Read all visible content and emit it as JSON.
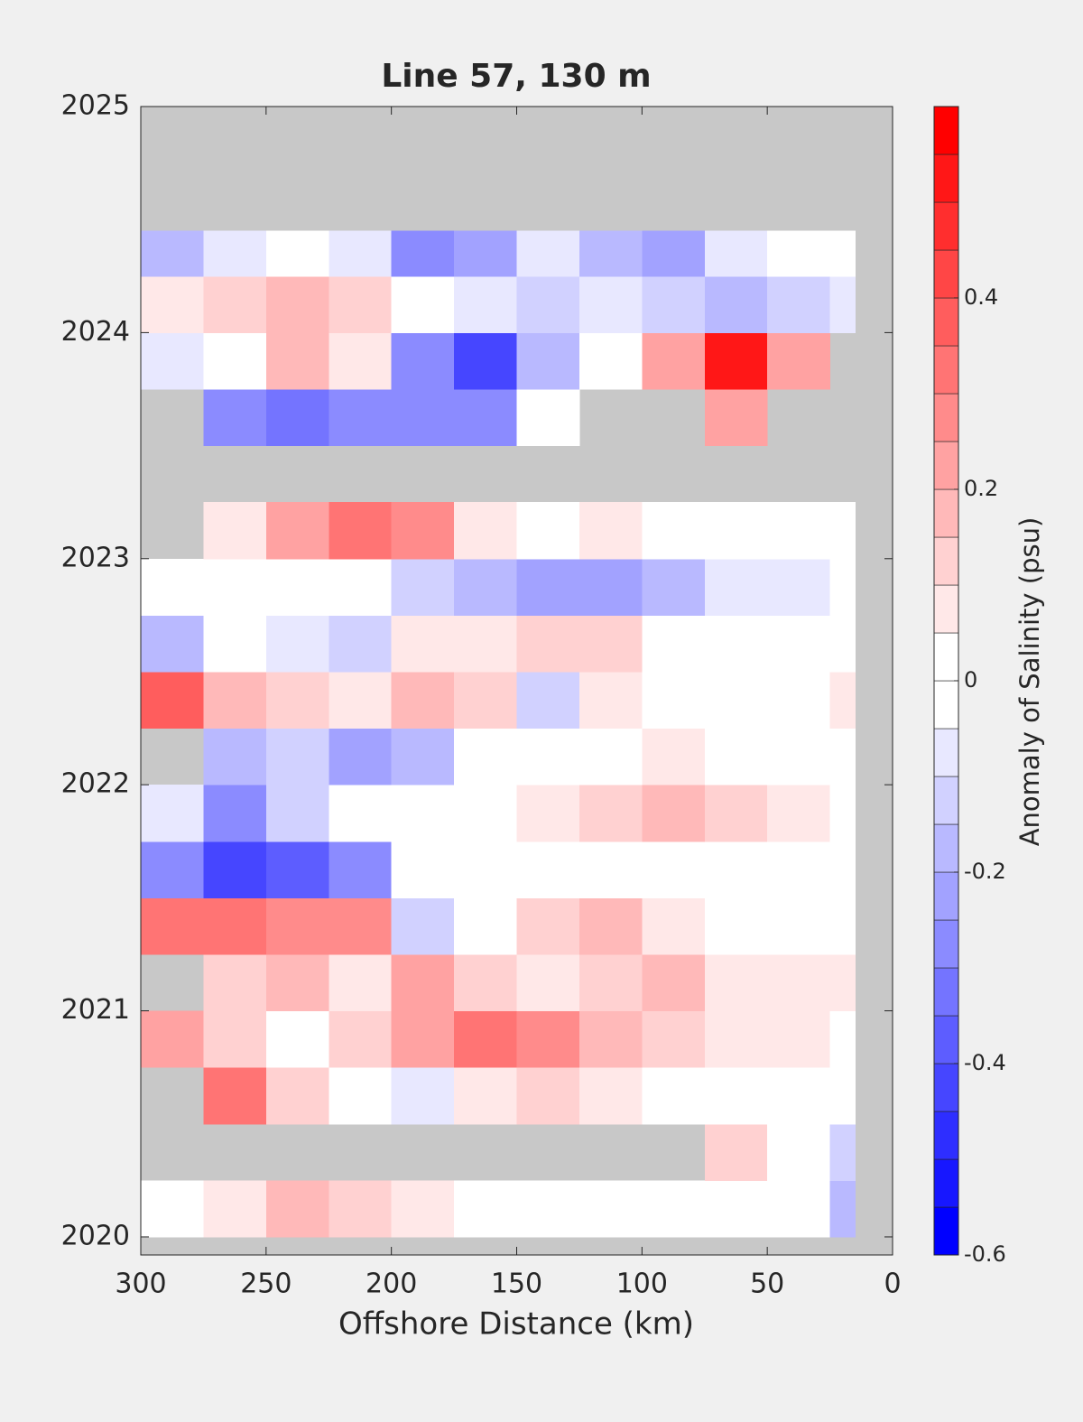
{
  "chart_data": {
    "type": "heatmap",
    "title": "Line 57, 130 m",
    "xlabel": "Offshore Distance (km)",
    "colorbar_label": "Anomaly of Salinity (psu)",
    "xlim": [
      300,
      0
    ],
    "xticks": [
      300,
      250,
      200,
      150,
      100,
      50,
      0
    ],
    "ylim": [
      2019.92,
      2025
    ],
    "yticks": [
      2020,
      2021,
      2022,
      2023,
      2024,
      2025
    ],
    "clim": [
      -0.6,
      0.6
    ],
    "cticks": [
      -0.6,
      -0.4,
      -0.2,
      0,
      0.2,
      0.4
    ],
    "levels_step": 0.05,
    "colormap": [
      "#0000ff",
      "#ffffff",
      "#ff0000"
    ],
    "nan_color": "#c8c8c8",
    "x_edges": [
      300,
      275,
      250,
      225,
      200,
      175,
      150,
      125,
      100,
      75,
      50,
      25,
      15
    ],
    "y_edges": [
      2020,
      2020.25,
      2020.5,
      2020.75,
      2021,
      2021.25,
      2021.5,
      2021.75,
      2022,
      2022.25,
      2022.5,
      2022.75,
      2023,
      2023.25,
      2023.5,
      2023.75,
      2024,
      2024.25,
      2024.45
    ],
    "z": [
      [
        0,
        0.05,
        0.15,
        0.1,
        0.05,
        0,
        -0.05,
        -0.05,
        0,
        0,
        0,
        -0.2
      ],
      [
        null,
        null,
        null,
        null,
        null,
        null,
        null,
        null,
        null,
        0.1,
        0,
        -0.15
      ],
      [
        null,
        0.3,
        0.1,
        -0.05,
        -0.1,
        0.05,
        0.1,
        0.05,
        0,
        0,
        0,
        0
      ],
      [
        0.2,
        0.1,
        0,
        0.1,
        0.2,
        0.3,
        0.25,
        0.15,
        0.1,
        0.05,
        0.05,
        0
      ],
      [
        null,
        0.1,
        0.15,
        0.05,
        0.2,
        0.1,
        0.05,
        0.1,
        0.15,
        0.05,
        0.05,
        0.05
      ],
      [
        0.3,
        0.3,
        0.25,
        0.25,
        -0.15,
        -0.05,
        0.1,
        0.15,
        0.05,
        0,
        0,
        0
      ],
      [
        -0.3,
        -0.45,
        -0.4,
        -0.3,
        -0.05,
        0,
        0,
        0,
        0,
        -0.05,
        0,
        0
      ],
      [
        -0.1,
        -0.3,
        -0.15,
        0,
        -0.05,
        0,
        0.05,
        0.1,
        0.15,
        0.1,
        0.05,
        0
      ],
      [
        null,
        -0.2,
        -0.15,
        -0.25,
        -0.2,
        0,
        0,
        0,
        0.05,
        0,
        0,
        0
      ],
      [
        0.35,
        0.15,
        0.1,
        0.05,
        0.15,
        0.1,
        -0.15,
        0.05,
        0,
        0,
        -0.05,
        0.05
      ],
      [
        -0.2,
        0,
        -0.1,
        -0.15,
        0.05,
        0.05,
        0.1,
        0.1,
        0,
        0,
        0,
        0
      ],
      [
        -0.05,
        -0.05,
        0,
        -0.05,
        -0.15,
        -0.2,
        -0.25,
        -0.25,
        -0.2,
        -0.1,
        -0.1,
        -0.05
      ],
      [
        null,
        0.05,
        0.2,
        0.3,
        0.25,
        0.05,
        0,
        0.05,
        0,
        0,
        0,
        0
      ],
      [
        null,
        null,
        null,
        null,
        null,
        null,
        null,
        null,
        null,
        null,
        null,
        null
      ],
      [
        null,
        -0.3,
        -0.35,
        -0.3,
        -0.3,
        -0.3,
        -0.05,
        null,
        null,
        0.2,
        null,
        null
      ],
      [
        -0.1,
        0,
        0.15,
        0.05,
        -0.3,
        -0.45,
        -0.2,
        0,
        0.2,
        0.5,
        0.2,
        null
      ],
      [
        0.05,
        0.1,
        0.15,
        0.1,
        -0.05,
        -0.1,
        -0.15,
        -0.1,
        -0.15,
        -0.2,
        -0.15,
        -0.1
      ],
      [
        -0.2,
        -0.1,
        -0.05,
        -0.1,
        -0.3,
        -0.25,
        -0.1,
        -0.2,
        -0.25,
        -0.1,
        0,
        0
      ]
    ]
  }
}
